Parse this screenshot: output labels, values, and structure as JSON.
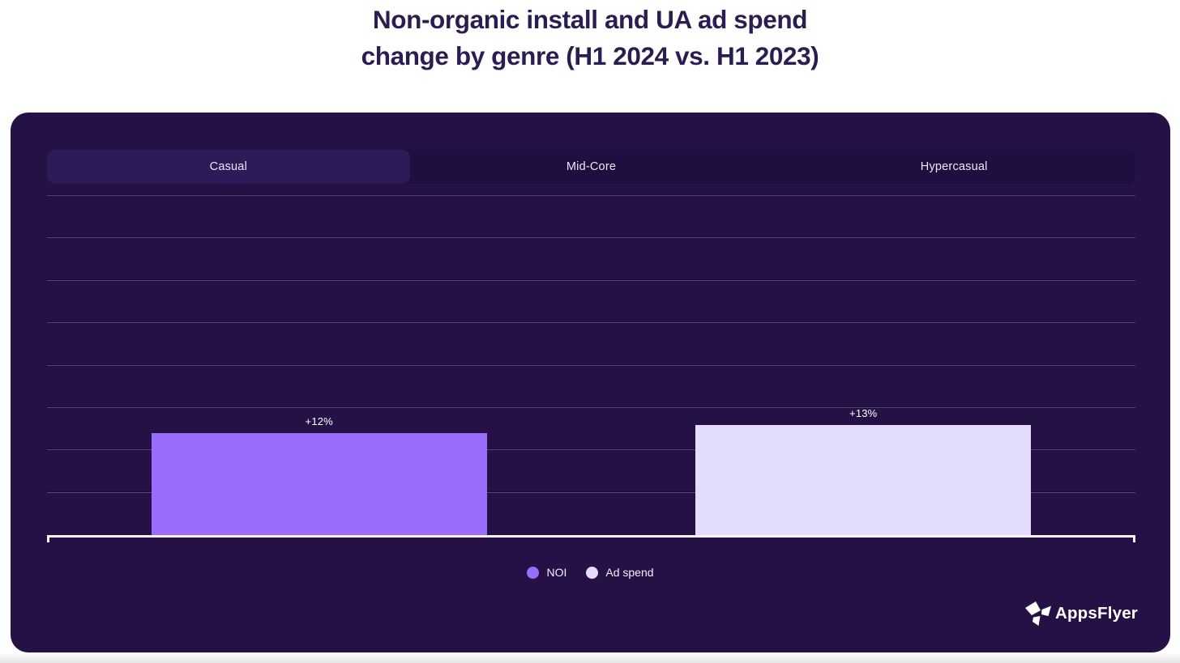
{
  "page": {
    "title": {
      "line1": "Non-organic install and UA ad spend",
      "line2": "change by genre (H1 2024 vs. H1 2023)"
    }
  },
  "colors": {
    "title_text": "#2b1d52",
    "card_bg": "#261147",
    "tab_active_bg": "#2e1a59",
    "tab_inactive_bg": "#1f0e40",
    "gridline": "rgba(170,150,210,0.38)",
    "axis_line": "#f7f4fd",
    "bar_noi": "#9a6cfc",
    "bar_adspend": "#e4dcfb",
    "label_text": "#ffffff"
  },
  "tabs": {
    "items": [
      {
        "label": "Casual",
        "active": true
      },
      {
        "label": "Mid-Core",
        "active": false
      },
      {
        "label": "Hypercasual",
        "active": false
      }
    ]
  },
  "chart_data": {
    "type": "bar",
    "title": "Non-organic install and UA ad spend change by genre (H1 2024 vs. H1 2023)",
    "selected_tab": "Casual",
    "categories": [
      "NOI",
      "Ad spend"
    ],
    "values": [
      12,
      13
    ],
    "data_labels": [
      "+12%",
      "+13%"
    ],
    "unit": "%",
    "ylim": [
      0,
      40
    ],
    "gridline_step": 5,
    "grid": true,
    "y_axis_labels_shown": false,
    "legend_position": "bottom",
    "bar_colors": [
      "#9a6cfc",
      "#e4dcfb"
    ]
  },
  "legend": {
    "items": [
      {
        "label": "NOI",
        "color": "#9a6cfc"
      },
      {
        "label": "Ad spend",
        "color": "#e4dcfb"
      }
    ]
  },
  "branding": {
    "name": "AppsFlyer"
  }
}
